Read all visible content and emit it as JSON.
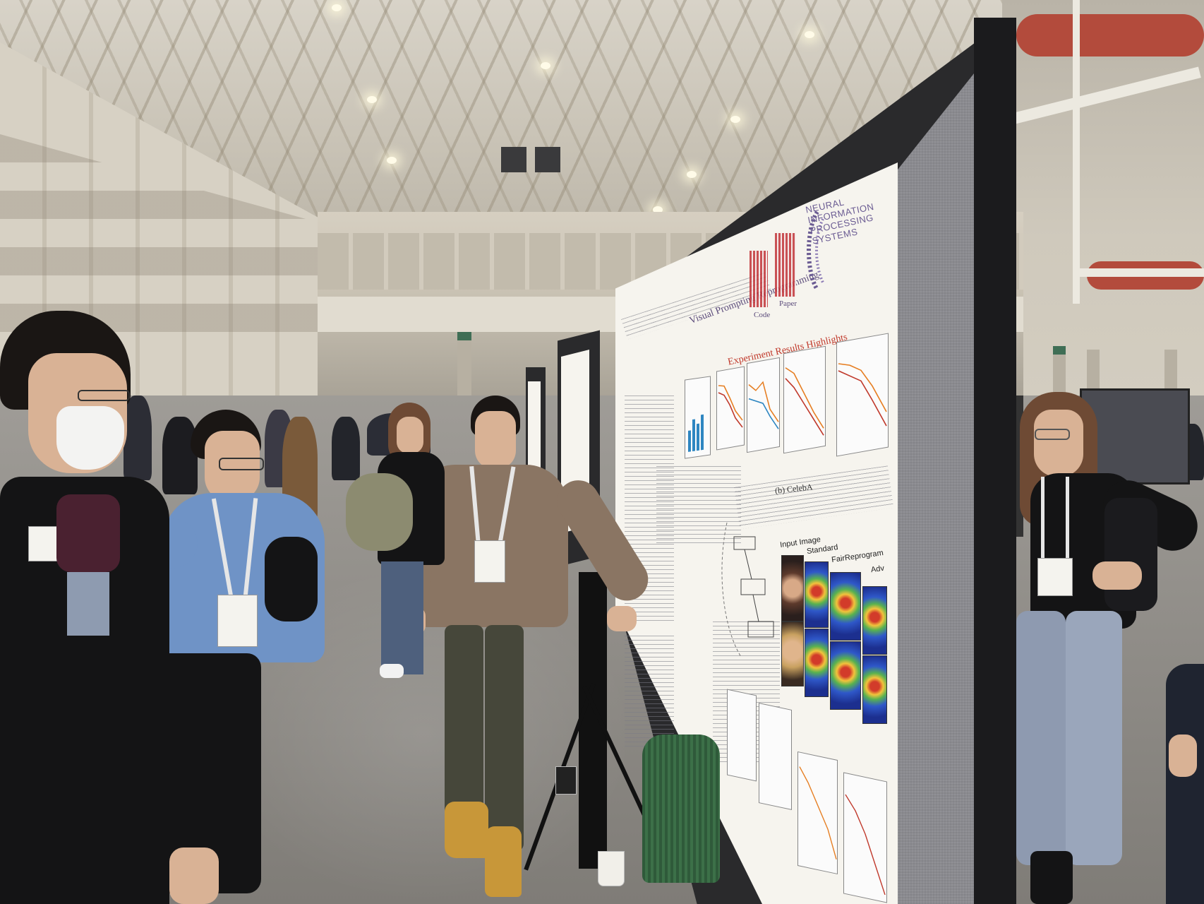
{
  "scene": {
    "colors": {
      "floor": "#8f8c87",
      "ceiling": "#d8d3c8",
      "board_fabric": "#8b8b90",
      "poster_accent": "#5a4a7a",
      "poster_heading": "#c0392b"
    }
  },
  "poster": {
    "title": "Visual Prompting Reprogramming",
    "logo": "NEURAL INFORMATION PROCESSING SYSTEMS",
    "qr_labels": [
      "Code",
      "Paper"
    ],
    "section_heading": "Experiment Results Highlights",
    "subfigure_label": "(b) CelebA",
    "heatmap_columns": [
      "Input Image",
      "Standard",
      "FairReprogram",
      "Adv"
    ]
  }
}
